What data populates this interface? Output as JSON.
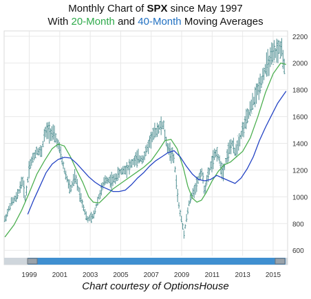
{
  "title": {
    "line1_prefix": "Monthly Chart of ",
    "line1_symbol": "SPX",
    "line1_suffix": " since May 1997",
    "line2_prefix": "With ",
    "line2_ma20": "20-Month",
    "line2_mid": " and ",
    "line2_ma40": "40-Month",
    "line2_suffix": " Moving Averages"
  },
  "credit": "Chart courtesy of OptionsHouse",
  "colors": {
    "bars": "#4f8f92",
    "ma20": "#4caf50",
    "ma40": "#2343c4",
    "grid": "#e8e8e8",
    "scrollbar": "#3f8fd0"
  },
  "chart_data": {
    "type": "line",
    "title": "Monthly Chart of SPX since May 1997",
    "subtitle": "With 20-Month and 40-Month Moving Averages",
    "x_ticks": [
      "1999",
      "2001",
      "2003",
      "2005",
      "2007",
      "2009",
      "2011",
      "2013",
      "2015"
    ],
    "y_ticks": [
      "600",
      "800",
      "1000",
      "1200",
      "1400",
      "1600",
      "1800",
      "2000",
      "2200"
    ],
    "ylim": [
      560,
      2240
    ],
    "xlim": [
      1997.35,
      2015.95
    ],
    "price_anchors": [
      [
        1997.4,
        830
      ],
      [
        1997.8,
        950
      ],
      [
        1998.2,
        1000
      ],
      [
        1998.55,
        1130
      ],
      [
        1998.75,
        980
      ],
      [
        1999.0,
        1230
      ],
      [
        1999.5,
        1350
      ],
      [
        1999.8,
        1330
      ],
      [
        2000.0,
        1470
      ],
      [
        2000.25,
        1500
      ],
      [
        2000.7,
        1450
      ],
      [
        2001.0,
        1350
      ],
      [
        2001.3,
        1200
      ],
      [
        2001.7,
        1050
      ],
      [
        2002.0,
        1150
      ],
      [
        2002.5,
        950
      ],
      [
        2002.8,
        830
      ],
      [
        2003.2,
        850
      ],
      [
        2003.5,
        980
      ],
      [
        2004.0,
        1130
      ],
      [
        2004.5,
        1120
      ],
      [
        2005.0,
        1190
      ],
      [
        2005.5,
        1220
      ],
      [
        2006.0,
        1280
      ],
      [
        2006.5,
        1290
      ],
      [
        2007.0,
        1440
      ],
      [
        2007.5,
        1520
      ],
      [
        2007.8,
        1540
      ],
      [
        2008.0,
        1390
      ],
      [
        2008.5,
        1280
      ],
      [
        2008.8,
        940
      ],
      [
        2009.15,
        730
      ],
      [
        2009.5,
        960
      ],
      [
        2010.0,
        1100
      ],
      [
        2010.3,
        1200
      ],
      [
        2010.5,
        1050
      ],
      [
        2010.9,
        1230
      ],
      [
        2011.3,
        1340
      ],
      [
        2011.7,
        1180
      ],
      [
        2012.0,
        1320
      ],
      [
        2012.3,
        1400
      ],
      [
        2012.5,
        1330
      ],
      [
        2013.0,
        1500
      ],
      [
        2013.5,
        1650
      ],
      [
        2014.0,
        1800
      ],
      [
        2014.5,
        1960
      ],
      [
        2015.0,
        2060
      ],
      [
        2015.4,
        2110
      ],
      [
        2015.6,
        2100
      ],
      [
        2015.7,
        1920
      ],
      [
        2015.8,
        2030
      ]
    ],
    "series": [
      {
        "name": "20-Month",
        "points": [
          [
            1997.4,
            700
          ],
          [
            1998.0,
            790
          ],
          [
            1998.5,
            900
          ],
          [
            1999.0,
            1030
          ],
          [
            1999.5,
            1170
          ],
          [
            2000.0,
            1270
          ],
          [
            2000.5,
            1360
          ],
          [
            2000.9,
            1395
          ],
          [
            2001.3,
            1380
          ],
          [
            2001.7,
            1300
          ],
          [
            2002.1,
            1200
          ],
          [
            2002.5,
            1110
          ],
          [
            2002.9,
            1000
          ],
          [
            2003.2,
            960
          ],
          [
            2003.6,
            955
          ],
          [
            2004.0,
            1000
          ],
          [
            2004.5,
            1060
          ],
          [
            2005.0,
            1100
          ],
          [
            2005.5,
            1140
          ],
          [
            2006.0,
            1180
          ],
          [
            2006.5,
            1220
          ],
          [
            2007.0,
            1270
          ],
          [
            2007.5,
            1350
          ],
          [
            2007.9,
            1420
          ],
          [
            2008.3,
            1430
          ],
          [
            2008.7,
            1360
          ],
          [
            2009.1,
            1220
          ],
          [
            2009.4,
            1080
          ],
          [
            2009.7,
            990
          ],
          [
            2010.0,
            960
          ],
          [
            2010.3,
            975
          ],
          [
            2010.6,
            1030
          ],
          [
            2011.0,
            1120
          ],
          [
            2011.4,
            1190
          ],
          [
            2011.8,
            1240
          ],
          [
            2012.2,
            1260
          ],
          [
            2012.6,
            1300
          ],
          [
            2013.0,
            1340
          ],
          [
            2013.5,
            1440
          ],
          [
            2014.0,
            1600
          ],
          [
            2014.5,
            1780
          ],
          [
            2015.0,
            1920
          ],
          [
            2015.5,
            2000
          ],
          [
            2015.85,
            1990
          ]
        ]
      },
      {
        "name": "40-Month",
        "points": [
          [
            1998.9,
            870
          ],
          [
            1999.3,
            980
          ],
          [
            1999.7,
            1080
          ],
          [
            2000.1,
            1180
          ],
          [
            2000.5,
            1245
          ],
          [
            2000.9,
            1280
          ],
          [
            2001.3,
            1295
          ],
          [
            2001.7,
            1290
          ],
          [
            2002.1,
            1250
          ],
          [
            2002.5,
            1200
          ],
          [
            2002.9,
            1150
          ],
          [
            2003.3,
            1110
          ],
          [
            2003.7,
            1080
          ],
          [
            2004.1,
            1060
          ],
          [
            2004.5,
            1040
          ],
          [
            2004.9,
            1040
          ],
          [
            2005.3,
            1050
          ],
          [
            2005.7,
            1090
          ],
          [
            2006.1,
            1140
          ],
          [
            2006.5,
            1180
          ],
          [
            2006.9,
            1230
          ],
          [
            2007.3,
            1270
          ],
          [
            2007.7,
            1300
          ],
          [
            2008.1,
            1330
          ],
          [
            2008.5,
            1345
          ],
          [
            2008.9,
            1300
          ],
          [
            2009.3,
            1230
          ],
          [
            2009.7,
            1170
          ],
          [
            2010.1,
            1130
          ],
          [
            2010.5,
            1120
          ],
          [
            2010.9,
            1130
          ],
          [
            2011.3,
            1160
          ],
          [
            2011.7,
            1140
          ],
          [
            2012.1,
            1120
          ],
          [
            2012.5,
            1100
          ],
          [
            2012.9,
            1140
          ],
          [
            2013.3,
            1210
          ],
          [
            2013.7,
            1300
          ],
          [
            2014.1,
            1420
          ],
          [
            2014.5,
            1520
          ],
          [
            2014.9,
            1610
          ],
          [
            2015.3,
            1700
          ],
          [
            2015.85,
            1790
          ]
        ]
      }
    ],
    "grid": true
  }
}
